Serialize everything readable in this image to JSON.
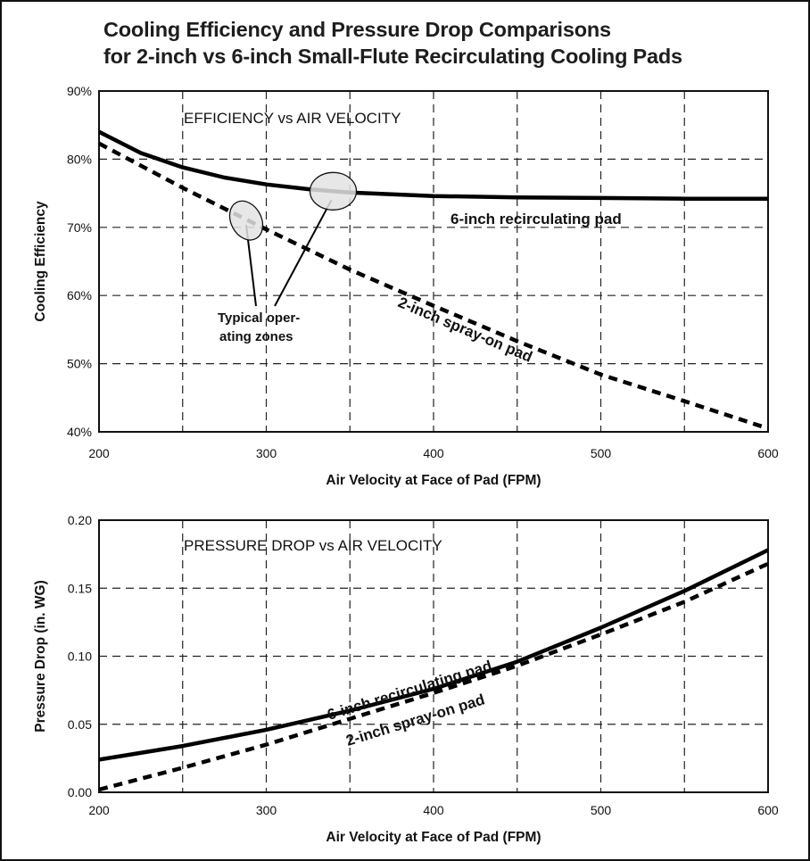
{
  "figure": {
    "title_line1": "Cooling Efficiency and Pressure Drop Comparisons",
    "title_line2": "for 2-inch vs 6-inch Small-Flute Recirculating Cooling Pads"
  },
  "chart_data": [
    {
      "type": "line",
      "title": "EFFICIENCY vs AIR VELOCITY",
      "xlabel": "Air Velocity at Face of Pad (FPM)",
      "ylabel": "Cooling Efficiency",
      "xlim": [
        200,
        600
      ],
      "ylim": [
        40,
        90
      ],
      "x_ticks": [
        200,
        300,
        400,
        500,
        600
      ],
      "x_tick_labels": [
        "200",
        "300",
        "400",
        "500",
        "600"
      ],
      "y_ticks": [
        40,
        50,
        60,
        70,
        80,
        90
      ],
      "y_tick_labels": [
        "40%",
        "50%",
        "60%",
        "70%",
        "80%",
        "90%"
      ],
      "grid": true,
      "series": [
        {
          "name": "6-inch recirculating pad",
          "style": "solid",
          "x": [
            200,
            225,
            250,
            275,
            300,
            325,
            350,
            400,
            450,
            500,
            550,
            600
          ],
          "y": [
            84.0,
            80.9,
            78.8,
            77.3,
            76.3,
            75.6,
            75.1,
            74.6,
            74.4,
            74.3,
            74.2,
            74.2
          ]
        },
        {
          "name": "2-inch spray-on pad",
          "style": "dashed",
          "x": [
            200,
            250,
            300,
            350,
            400,
            450,
            500,
            550,
            600
          ],
          "y": [
            82.3,
            75.8,
            69.7,
            63.8,
            58.5,
            53.3,
            48.4,
            44.5,
            40.5
          ]
        }
      ],
      "annotations": {
        "zones_label_line1": "Typical oper-",
        "zones_label_line2": "ating zones",
        "zone_centers": [
          [
            288,
            71
          ],
          [
            340,
            75.3
          ]
        ]
      },
      "colors": {
        "lines": "#000000",
        "zone_fill": "#e3e3e3",
        "grid": "#222222"
      }
    },
    {
      "type": "line",
      "title": "PRESSURE DROP vs AIR VELOCITY",
      "xlabel": "Air Velocity at Face of Pad (FPM)",
      "ylabel": "Pressure Drop (in. WG)",
      "xlim": [
        200,
        600
      ],
      "ylim": [
        0,
        0.2
      ],
      "x_ticks": [
        200,
        300,
        400,
        500,
        600
      ],
      "x_tick_labels": [
        "200",
        "300",
        "400",
        "500",
        "600"
      ],
      "y_ticks": [
        0,
        0.05,
        0.1,
        0.15,
        0.2
      ],
      "y_tick_labels": [
        "0.00",
        "0.05",
        "0.10",
        "0.15",
        "0.20"
      ],
      "grid": true,
      "series": [
        {
          "name": "6-inch recirculating pad",
          "style": "solid",
          "x": [
            200,
            250,
            300,
            350,
            400,
            450,
            500,
            550,
            600
          ],
          "y": [
            0.024,
            0.034,
            0.046,
            0.06,
            0.076,
            0.096,
            0.121,
            0.148,
            0.178
          ]
        },
        {
          "name": "2-inch spray-on pad",
          "style": "dashed",
          "x": [
            200,
            250,
            300,
            350,
            400,
            450,
            500,
            550,
            600
          ],
          "y": [
            0.002,
            0.018,
            0.035,
            0.054,
            0.073,
            0.093,
            0.116,
            0.14,
            0.168
          ]
        }
      ],
      "colors": {
        "lines": "#000000",
        "grid": "#222222"
      }
    }
  ]
}
